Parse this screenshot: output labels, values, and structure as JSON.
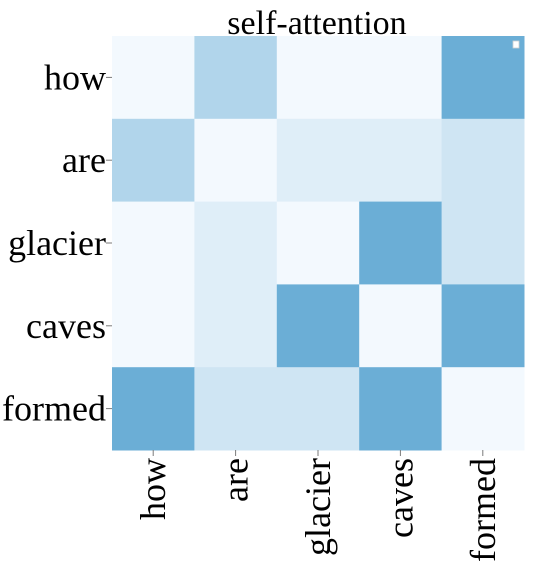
{
  "chart_data": {
    "type": "heatmap",
    "title": "self-attention",
    "x_categories": [
      "how",
      "are",
      "glacier",
      "caves",
      "formed"
    ],
    "y_categories": [
      "how",
      "are",
      "glacier",
      "caves",
      "formed"
    ],
    "values": [
      [
        0.02,
        0.35,
        0.02,
        0.02,
        0.7
      ],
      [
        0.35,
        0.02,
        0.12,
        0.12,
        0.2
      ],
      [
        0.02,
        0.12,
        0.02,
        0.7,
        0.2
      ],
      [
        0.02,
        0.12,
        0.7,
        0.02,
        0.7
      ],
      [
        0.7,
        0.2,
        0.2,
        0.7,
        0.02
      ]
    ],
    "value_range": [
      0,
      1
    ],
    "colormap": [
      "#f7fbff",
      "#6baed6"
    ],
    "grid": false,
    "legend": "top-right"
  }
}
